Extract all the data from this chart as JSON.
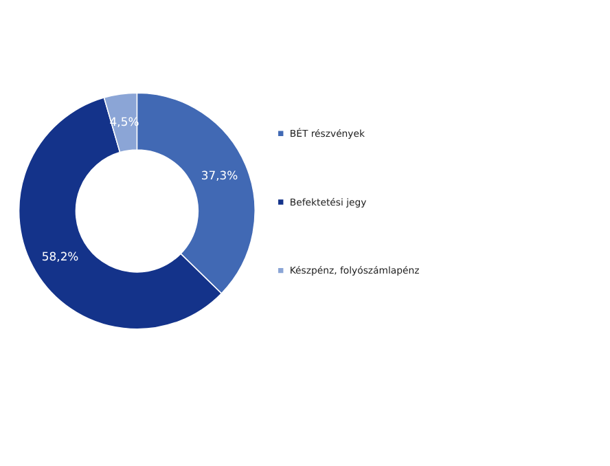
{
  "chart_data": {
    "type": "donut",
    "categories": [
      "BÉT részvények",
      "Befektetési jegy",
      "Készpénz, folyószámlapénz"
    ],
    "values": [
      37.3,
      58.2,
      4.5
    ],
    "colors": [
      "#4169b4",
      "#14338a",
      "#8ba5d6"
    ],
    "value_labels": [
      "37,3%",
      "58,2%",
      "4,5%"
    ],
    "legend": "right"
  }
}
